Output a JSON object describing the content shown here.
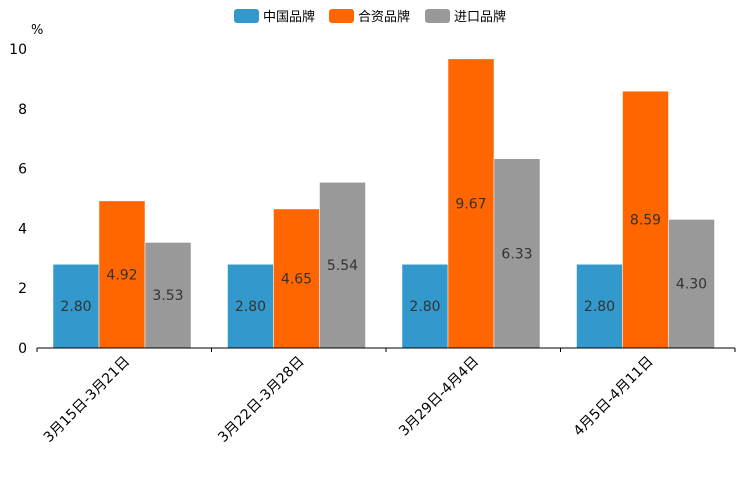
{
  "chart_data": {
    "type": "bar",
    "unit": "%",
    "categories": [
      "3月15日-3月21日",
      "3月22日-3月28日",
      "3月29日-4月4日",
      "4月5日-4月11日"
    ],
    "series": [
      {
        "name": "中国品牌",
        "color": "#3399cc",
        "values": [
          2.8,
          2.8,
          2.8,
          2.8
        ],
        "labels": [
          "2.80",
          "2.80",
          "2.80",
          "2.80"
        ]
      },
      {
        "name": "合资品牌",
        "color": "#ff6600",
        "values": [
          4.92,
          4.65,
          9.67,
          8.59
        ],
        "labels": [
          "4.92",
          "4.65",
          "9.67",
          "8.59"
        ]
      },
      {
        "name": "进口品牌",
        "color": "#999999",
        "values": [
          3.53,
          5.54,
          6.33,
          4.3
        ],
        "labels": [
          "3.53",
          "5.54",
          "6.33",
          "4.30"
        ]
      }
    ],
    "yticks": [
      "0",
      "2",
      "4",
      "6",
      "8",
      "10"
    ],
    "ylim": [
      0,
      10
    ],
    "legend_position": "top-center"
  }
}
